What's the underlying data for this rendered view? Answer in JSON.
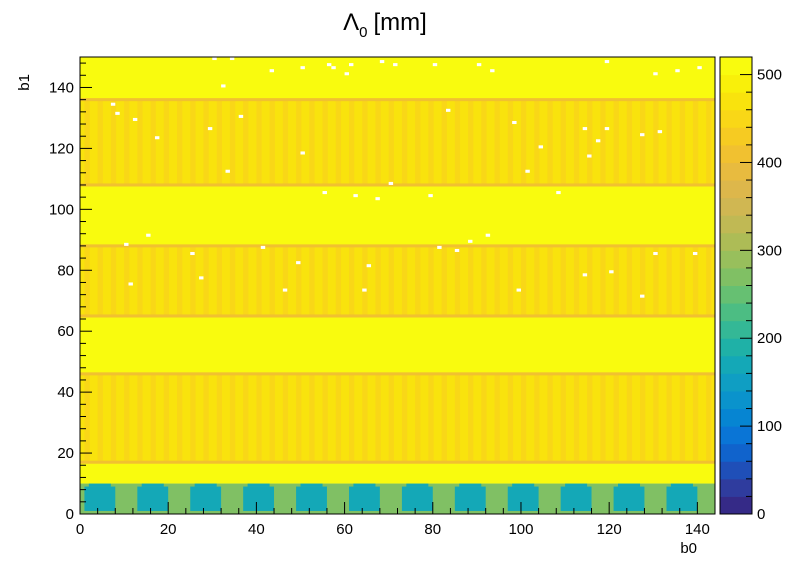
{
  "chart_data": {
    "type": "heatmap",
    "title": "Λ0 [mm]",
    "title_main": "Λ",
    "title_sub": "0",
    "title_unit": "[mm]",
    "xlabel": "b0",
    "ylabel": "b1",
    "xlim": [
      0,
      144
    ],
    "ylim": [
      0,
      150
    ],
    "x_ticks": [
      "0",
      "20",
      "40",
      "60",
      "80",
      "100",
      "120",
      "140"
    ],
    "y_ticks": [
      "0",
      "20",
      "40",
      "60",
      "80",
      "100",
      "120",
      "140"
    ],
    "z_range": [
      0,
      520
    ],
    "z_ticks": [
      "0",
      "100",
      "200",
      "300",
      "400",
      "500"
    ],
    "palette": [
      "#352a87",
      "#2f3c9e",
      "#1f4fb8",
      "#1063cc",
      "#0a75d6",
      "#0685d2",
      "#0a93cc",
      "#0f9ec3",
      "#14a8b7",
      "#1fb1a7",
      "#34b896",
      "#4cbd83",
      "#66c072",
      "#80c064",
      "#98bf5c",
      "#adbc56",
      "#c0b954",
      "#d0b752",
      "#ddb74b",
      "#e8bb3f",
      "#f1c130",
      "#f6cb22",
      "#f9d717",
      "#f9e30d",
      "#f9f00a",
      "#f9fb0e"
    ],
    "regions": [
      {
        "label": "low row band",
        "b1": [
          0,
          10
        ],
        "b0": [
          0,
          144
        ],
        "value": 270,
        "pattern": "alternating 6-wide blocks",
        "alt_value": 170
      },
      {
        "label": "uniform band",
        "b1": [
          10,
          17
        ],
        "b0": [
          0,
          144
        ],
        "value": 510
      },
      {
        "label": "striped module",
        "b1": [
          17,
          46
        ],
        "b0": [
          0,
          144
        ],
        "value": 470,
        "pattern": "vertical stripes"
      },
      {
        "label": "uniform band",
        "b1": [
          46,
          65
        ],
        "b0": [
          0,
          144
        ],
        "value": 510
      },
      {
        "label": "striped module",
        "b1": [
          65,
          88
        ],
        "b0": [
          0,
          144
        ],
        "value": 470,
        "pattern": "vertical stripes"
      },
      {
        "label": "uniform band",
        "b1": [
          88,
          108
        ],
        "b0": [
          0,
          144
        ],
        "value": 510
      },
      {
        "label": "striped module",
        "b1": [
          108,
          136
        ],
        "b0": [
          0,
          144
        ],
        "value": 470,
        "pattern": "vertical stripes"
      },
      {
        "label": "uniform band",
        "b1": [
          136,
          150
        ],
        "b0": [
          0,
          144
        ],
        "value": 510
      }
    ],
    "boundary_rows_b1": [
      17,
      46,
      65,
      88,
      108,
      136
    ],
    "boundary_value": 400,
    "empty_bins": [
      [
        30,
        149
      ],
      [
        34,
        149
      ],
      [
        50,
        146
      ],
      [
        56,
        147
      ],
      [
        61,
        147
      ],
      [
        57,
        146
      ],
      [
        43,
        145
      ],
      [
        60,
        144
      ],
      [
        68,
        148
      ],
      [
        71,
        147
      ],
      [
        80,
        147
      ],
      [
        90,
        147
      ],
      [
        119,
        148
      ],
      [
        140,
        146
      ],
      [
        135,
        145
      ],
      [
        130,
        144
      ],
      [
        93,
        145
      ],
      [
        32,
        140
      ],
      [
        12,
        129
      ],
      [
        8,
        131
      ],
      [
        36,
        130
      ],
      [
        29,
        126
      ],
      [
        98,
        128
      ],
      [
        114,
        126
      ],
      [
        119,
        126
      ],
      [
        127,
        124
      ],
      [
        131,
        125
      ],
      [
        117,
        122
      ],
      [
        104,
        120
      ],
      [
        17,
        123
      ],
      [
        7,
        134
      ],
      [
        83,
        132
      ],
      [
        33,
        112
      ],
      [
        79,
        104
      ],
      [
        55,
        105
      ],
      [
        62,
        104
      ],
      [
        67,
        103
      ],
      [
        101,
        112
      ],
      [
        70,
        108
      ],
      [
        108,
        105
      ],
      [
        50,
        118
      ],
      [
        115,
        117
      ],
      [
        88,
        89
      ],
      [
        81,
        87
      ],
      [
        85,
        86
      ],
      [
        92,
        91
      ],
      [
        41,
        87
      ],
      [
        49,
        82
      ],
      [
        65,
        81
      ],
      [
        120,
        79
      ],
      [
        130,
        85
      ],
      [
        139,
        85
      ],
      [
        127,
        71
      ],
      [
        114,
        78
      ],
      [
        64,
        73
      ],
      [
        27,
        77
      ],
      [
        46,
        73
      ],
      [
        25,
        85
      ],
      [
        11,
        75
      ],
      [
        99,
        73
      ],
      [
        15,
        91
      ],
      [
        10,
        88
      ]
    ],
    "empty_color": "#ffffff"
  }
}
